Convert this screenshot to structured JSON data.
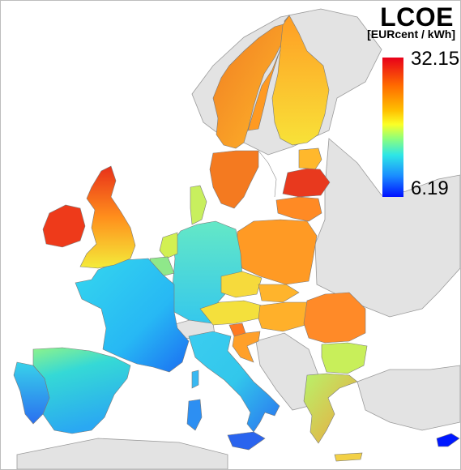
{
  "legend": {
    "title": "LCOE",
    "unit": "[EURcent / kWh]",
    "max_label": "32.15",
    "min_label": "6.19",
    "scale": [
      "#e8001a",
      "#ff6a00",
      "#ffc000",
      "#fbff26",
      "#8fff7a",
      "#2ee6e6",
      "#1a8cff",
      "#0010ff"
    ]
  },
  "colors": {
    "sea": "#ffffff",
    "non_eu_land": "#e3e3e3",
    "borders": "#8a8a8a"
  }
}
